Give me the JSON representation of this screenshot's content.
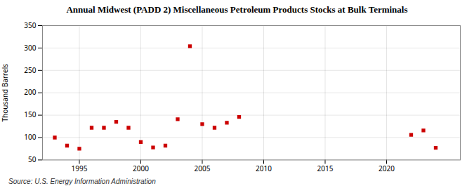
{
  "chart_data": {
    "type": "scatter",
    "title": "Annual Midwest (PADD 2) Miscellaneous Petroleum Products Stocks at Bulk Terminals",
    "ylabel": "Thousand Barrels",
    "source": "Source: U.S. Energy Information Administration",
    "x": [
      1993,
      1994,
      1995,
      1996,
      1997,
      1998,
      1999,
      2000,
      2001,
      2002,
      2003,
      2004,
      2005,
      2006,
      2007,
      2008,
      2022,
      2023,
      2024
    ],
    "values": [
      100,
      82,
      75,
      122,
      122,
      135,
      122,
      90,
      78,
      82,
      141,
      304,
      130,
      122,
      133,
      146,
      106,
      116,
      77
    ],
    "color": "#cc0000",
    "marker": "square",
    "xlim": [
      1992,
      2026
    ],
    "xticks": [
      1995,
      2000,
      2005,
      2010,
      2015,
      2020
    ],
    "ylim": [
      50,
      350
    ],
    "yticks": [
      50,
      100,
      150,
      200,
      250,
      300,
      350
    ],
    "grid": true
  }
}
